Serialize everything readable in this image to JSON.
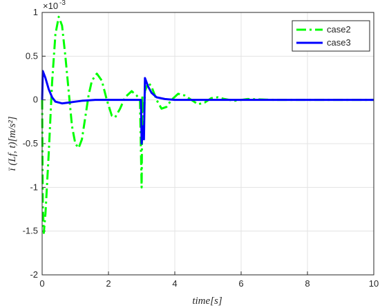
{
  "chart_data": {
    "type": "line",
    "xlabel": "time[s]",
    "ylabel": "ï (Lf, t)[m/s²]",
    "y_multiplier": {
      "base": "×10",
      "exponent": "-3"
    },
    "xlim": [
      0,
      10
    ],
    "xticks": [
      0,
      2,
      4,
      6,
      8,
      10
    ],
    "ylim": [
      -2,
      1
    ],
    "yticks": [
      -2,
      -1.5,
      -1,
      -0.5,
      0,
      0.5,
      1
    ],
    "grid": true,
    "legend_position": "upper-right",
    "series": [
      {
        "name": "case2",
        "color": "#00ff00",
        "style": "dash-dot",
        "x": [
          0,
          0.02,
          0.05,
          0.1,
          0.2,
          0.3,
          0.4,
          0.5,
          0.6,
          0.7,
          0.8,
          0.9,
          1.0,
          1.1,
          1.2,
          1.3,
          1.4,
          1.5,
          1.65,
          1.8,
          1.95,
          2.1,
          2.2,
          2.35,
          2.5,
          2.7,
          2.85,
          2.95,
          3.0,
          3.02,
          3.05,
          3.1,
          3.2,
          3.3,
          3.45,
          3.6,
          3.75,
          3.9,
          4.1,
          4.3,
          4.5,
          4.7,
          4.9,
          5.1,
          5.3,
          5.5,
          5.8,
          6.2,
          7,
          10
        ],
        "values": [
          0,
          -1.2,
          -1.52,
          -1.3,
          -0.6,
          0.2,
          0.75,
          0.95,
          0.85,
          0.5,
          0.1,
          -0.3,
          -0.5,
          -0.55,
          -0.45,
          -0.2,
          0.05,
          0.22,
          0.3,
          0.22,
          0,
          -0.18,
          -0.2,
          -0.1,
          0.03,
          0.1,
          0.05,
          0,
          -1.0,
          0.05,
          -0.4,
          0.1,
          0.2,
          0.15,
          0,
          -0.1,
          -0.08,
          0,
          0.07,
          0.05,
          0,
          -0.05,
          -0.03,
          0.02,
          0.03,
          0.01,
          -0.01,
          0.01,
          0,
          0
        ]
      },
      {
        "name": "case3",
        "color": "#0000ff",
        "style": "solid",
        "x": [
          0,
          0.02,
          0.1,
          0.2,
          0.3,
          0.4,
          0.6,
          0.8,
          1.2,
          1.6,
          2.98,
          3.0,
          3.05,
          3.07,
          3.1,
          3.2,
          3.3,
          3.45,
          3.7,
          4.0,
          10
        ],
        "values": [
          0,
          0.33,
          0.25,
          0.12,
          0.03,
          -0.02,
          -0.04,
          -0.03,
          -0.01,
          0,
          0,
          -0.5,
          -0.3,
          -0.45,
          0.25,
          0.15,
          0.08,
          0.03,
          0.01,
          0,
          0
        ]
      }
    ]
  }
}
